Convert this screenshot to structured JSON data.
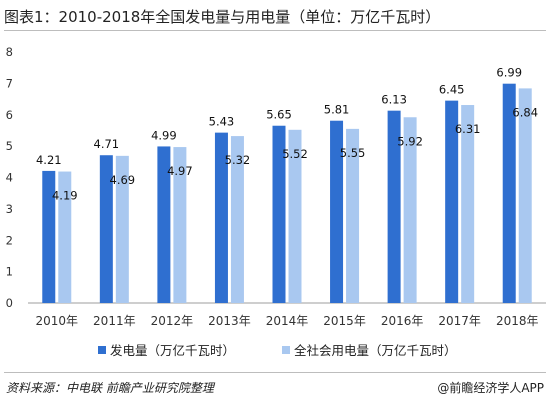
{
  "header": {
    "title": "图表1：2010-2018年全国发电量与用电量（单位：万亿千瓦时）"
  },
  "footer": {
    "source": "资料来源：中电联 前瞻产业研究院整理",
    "brand": "@前瞻经济学人APP"
  },
  "chart_data": {
    "type": "bar",
    "title": "图表1：2010-2018年全国发电量与用电量（单位：万亿千瓦时）",
    "xlabel": "",
    "ylabel": "",
    "categories": [
      "2010年",
      "2011年",
      "2012年",
      "2013年",
      "2014年",
      "2015年",
      "2016年",
      "2017年",
      "2018年"
    ],
    "ylim": [
      0,
      8
    ],
    "yticks": [
      "0",
      "1",
      "2",
      "3",
      "4",
      "5",
      "6",
      "7",
      "8"
    ],
    "grid": false,
    "legend": "bottom",
    "series": [
      {
        "name": "发电量（万亿千瓦时）",
        "values": [
          4.21,
          4.71,
          4.99,
          5.43,
          5.65,
          5.81,
          6.13,
          6.45,
          6.99
        ],
        "labels": [
          "4.21",
          "4.71",
          "4.99",
          "5.43",
          "5.65",
          "5.81",
          "6.13",
          "6.45",
          "6.99"
        ],
        "color": "#2f6fd0"
      },
      {
        "name": "全社会用电量（万亿千瓦时）",
        "values": [
          4.19,
          4.69,
          4.97,
          5.32,
          5.52,
          5.55,
          5.92,
          6.31,
          6.84
        ],
        "labels": [
          "4.19",
          "4.69",
          "4.97",
          "5.32",
          "5.52",
          "5.55",
          "5.92",
          "6.31",
          "6.84"
        ],
        "color": "#a9c8f0"
      }
    ]
  }
}
